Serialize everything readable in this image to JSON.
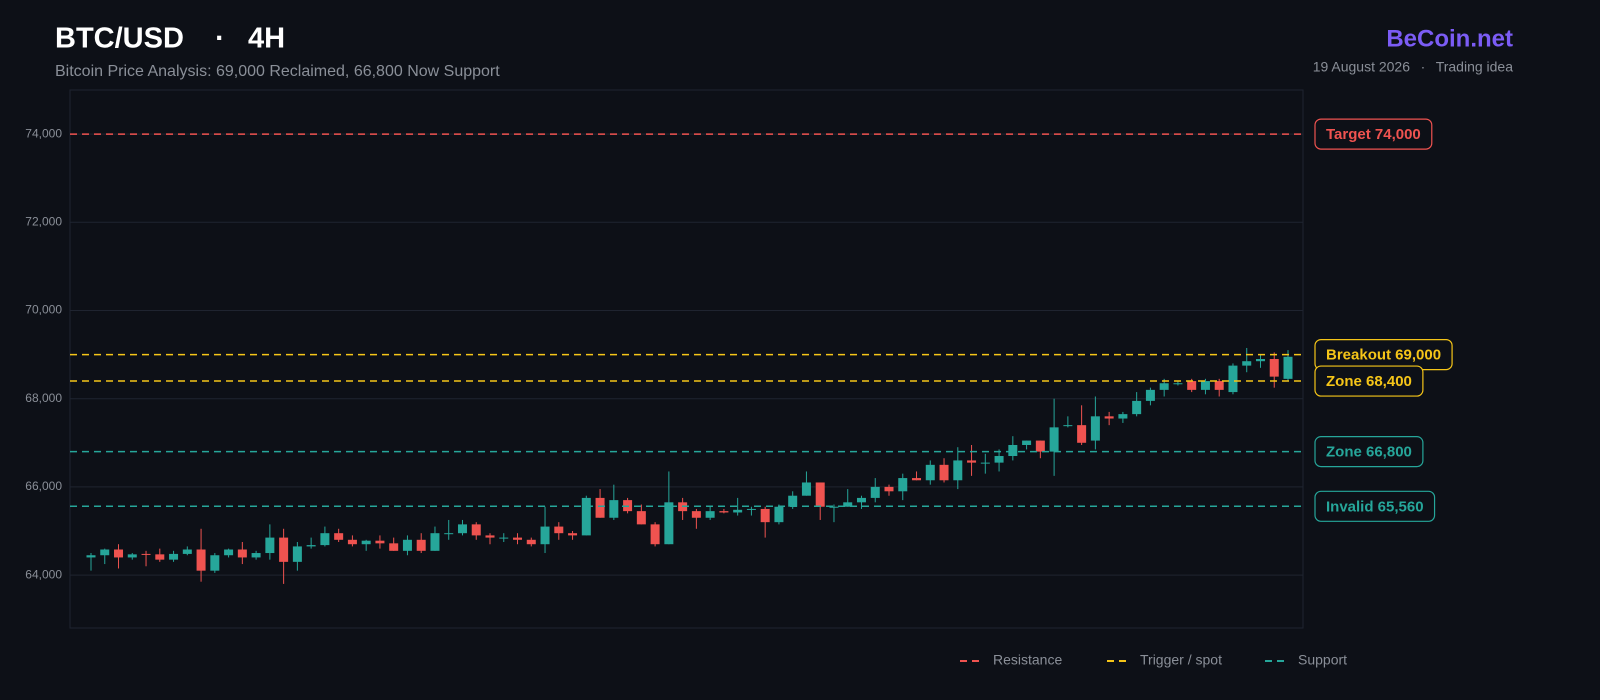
{
  "chart_data": {
    "type": "candlestick",
    "title": "BTC/USD",
    "separator": "·",
    "timeframe": "4H",
    "subtitle": "Bitcoin Price Analysis: 69,000 Reclaimed, 66,800 Now Support",
    "brand": "BeCoin.net",
    "date": "19 August 2026",
    "tag": "Trading idea",
    "up_color": "#26a69a",
    "down_color": "#ef5350",
    "grid": true,
    "ylim": [
      62800,
      75000
    ],
    "yticks": [
      {
        "value": 64000,
        "label": "64,000"
      },
      {
        "value": 66000,
        "label": "66,000"
      },
      {
        "value": 68000,
        "label": "68,000"
      },
      {
        "value": 70000,
        "label": "70,000"
      },
      {
        "value": 72000,
        "label": "72,000"
      },
      {
        "value": 74000,
        "label": "74,000"
      }
    ],
    "open": [
      64400,
      64450,
      64580,
      64400,
      64480,
      64470,
      64350,
      64480,
      64580,
      64100,
      64450,
      64580,
      64400,
      64500,
      64850,
      64300,
      64650,
      64680,
      64950,
      64800,
      64700,
      64780,
      64720,
      64550,
      64800,
      64550,
      64950,
      64950,
      65150,
      64900,
      64850,
      64850,
      64800,
      64700,
      65100,
      64950,
      64900,
      65750,
      65300,
      65700,
      65450,
      65150,
      64700,
      65650,
      65450,
      65300,
      65450,
      65420,
      65480,
      65500,
      65200,
      65550,
      65800,
      66100,
      65550,
      65550,
      65650,
      65750,
      66000,
      65900,
      66200,
      66150,
      66500,
      66150,
      66600,
      66550,
      66550,
      66700,
      66950,
      67050,
      66800,
      67400,
      67400,
      67050,
      67600,
      67550,
      67650,
      67950,
      68200,
      68350,
      68400,
      68200,
      68400,
      68150,
      68750,
      68850,
      68900,
      68450
    ],
    "high": [
      64500,
      64600,
      64700,
      64500,
      64550,
      64600,
      64550,
      64650,
      65050,
      64500,
      64600,
      64750,
      64550,
      65150,
      65050,
      64750,
      64850,
      65100,
      65050,
      64900,
      64800,
      64900,
      64850,
      64900,
      64950,
      65100,
      65250,
      65250,
      65200,
      64950,
      64950,
      64950,
      64850,
      65550,
      65200,
      65000,
      65800,
      65950,
      66050,
      65750,
      65600,
      65200,
      66350,
      65750,
      65500,
      65550,
      65500,
      65750,
      65550,
      65550,
      65600,
      65900,
      66350,
      66100,
      65600,
      65950,
      65800,
      66200,
      66050,
      66300,
      66350,
      66600,
      66650,
      66900,
      66950,
      66750,
      66850,
      67150,
      67050,
      67050,
      68000,
      67600,
      67850,
      68050,
      67700,
      67700,
      68150,
      68250,
      68450,
      68400,
      68450,
      68450,
      68450,
      68800,
      69150,
      69000,
      69050,
      69100
    ],
    "low": [
      64100,
      64250,
      64150,
      64350,
      64200,
      64300,
      64300,
      64450,
      63850,
      64050,
      64400,
      64250,
      64350,
      64350,
      63800,
      64100,
      64600,
      64650,
      64750,
      64650,
      64550,
      64600,
      64550,
      64450,
      64500,
      64550,
      64800,
      64900,
      64800,
      64700,
      64750,
      64700,
      64650,
      64500,
      64800,
      64800,
      64900,
      65300,
      65250,
      65400,
      65150,
      64650,
      64700,
      65250,
      65050,
      65250,
      65400,
      65350,
      65350,
      64850,
      65150,
      65500,
      65800,
      65250,
      65200,
      65550,
      65500,
      65650,
      65800,
      65700,
      66150,
      66050,
      66100,
      65950,
      66250,
      66300,
      66350,
      66600,
      66850,
      66650,
      66250,
      67350,
      66950,
      66850,
      67400,
      67450,
      67600,
      67850,
      68050,
      68300,
      68150,
      68100,
      68050,
      68100,
      68600,
      68700,
      68250,
      68400
    ],
    "close": [
      64450,
      64580,
      64400,
      64470,
      64470,
      64350,
      64480,
      64580,
      64100,
      64450,
      64580,
      64400,
      64500,
      64850,
      64300,
      64650,
      64680,
      64950,
      64800,
      64700,
      64780,
      64720,
      64550,
      64800,
      64550,
      64950,
      64950,
      65150,
      64900,
      64850,
      64850,
      64800,
      64700,
      65100,
      64950,
      64900,
      65750,
      65300,
      65700,
      65450,
      65150,
      64700,
      65650,
      65450,
      65300,
      65450,
      65420,
      65480,
      65500,
      65200,
      65550,
      65800,
      66100,
      65550,
      65550,
      65650,
      65750,
      66000,
      65900,
      66200,
      66150,
      66500,
      66150,
      66600,
      66550,
      66550,
      66700,
      66950,
      67050,
      66800,
      67350,
      67400,
      67000,
      67600,
      67550,
      67650,
      67950,
      68200,
      68350,
      68350,
      68200,
      68400,
      68200,
      68750,
      68850,
      68900,
      68500,
      68950
    ],
    "legend": [
      {
        "name": "Resistance",
        "color": "#ef5350",
        "levels": [
          {
            "value": 74000,
            "label": "Target 74,000"
          }
        ]
      },
      {
        "name": "Trigger / spot",
        "color": "#f5c518",
        "levels": [
          {
            "value": 69000,
            "label": "Breakout 69,000"
          },
          {
            "value": 68400,
            "label": "Zone 68,400"
          }
        ]
      },
      {
        "name": "Support",
        "color": "#26a69a",
        "levels": [
          {
            "value": 66800,
            "label": "Zone 66,800"
          },
          {
            "value": 65560,
            "label": "Invalid 65,560"
          }
        ]
      }
    ]
  }
}
